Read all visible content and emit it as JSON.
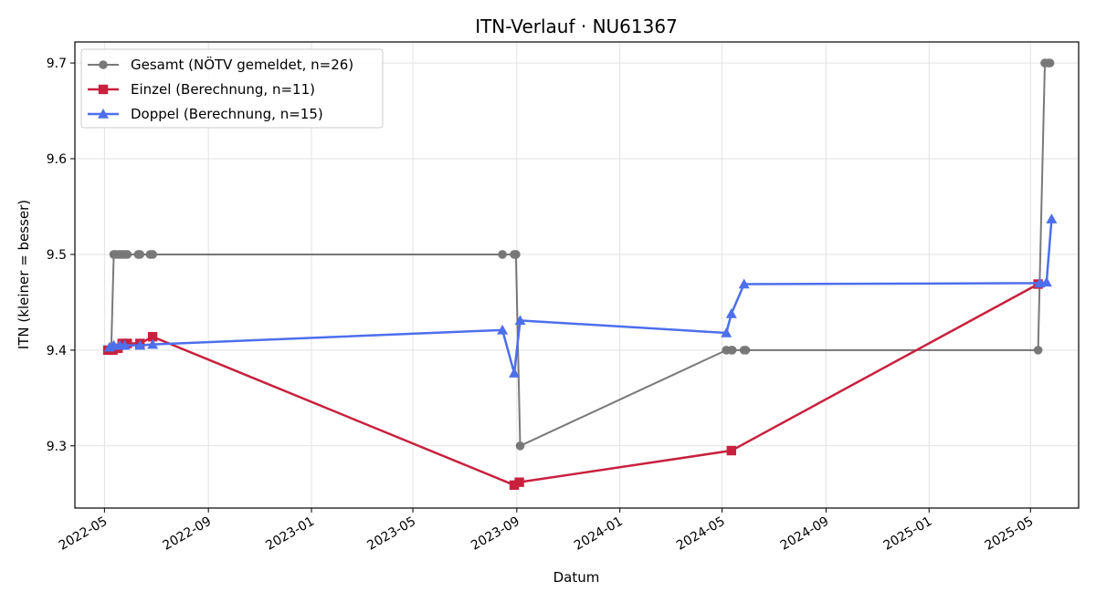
{
  "chart_data": {
    "type": "line",
    "title": "ITN-Verlauf · NU61367",
    "xlabel": "Datum",
    "ylabel": "ITN  (kleiner = besser)",
    "x_range": [
      "2022-03-27",
      "2025-06-27"
    ],
    "ylim": [
      9.235,
      9.722
    ],
    "y_ticks": [
      9.3,
      9.4,
      9.5,
      9.6,
      9.7
    ],
    "y_tick_labels": [
      "9.3",
      "9.4",
      "9.5",
      "9.6",
      "9.7"
    ],
    "x_ticks": [
      "2022-05-01",
      "2022-09-01",
      "2023-01-01",
      "2023-05-01",
      "2023-09-01",
      "2024-01-01",
      "2024-05-01",
      "2024-09-01",
      "2025-01-01",
      "2025-05-01"
    ],
    "x_tick_labels": [
      "2022-05",
      "2022-09",
      "2023-01",
      "2023-05",
      "2023-09",
      "2024-01",
      "2024-05",
      "2024-09",
      "2025-01",
      "2025-05"
    ],
    "grid": true,
    "legend_position": "top-left",
    "series": [
      {
        "name": "Gesamt (NÖTV gemeldet, n=26)",
        "color": "#4d4d4d",
        "marker": "circle",
        "points": [
          {
            "x": "2022-05-05",
            "y": 9.4
          },
          {
            "x": "2022-05-08",
            "y": 9.4
          },
          {
            "x": "2022-05-09",
            "y": 9.4
          },
          {
            "x": "2022-05-12",
            "y": 9.5
          },
          {
            "x": "2022-05-15",
            "y": 9.5
          },
          {
            "x": "2022-05-19",
            "y": 9.5
          },
          {
            "x": "2022-05-22",
            "y": 9.5
          },
          {
            "x": "2022-05-25",
            "y": 9.5
          },
          {
            "x": "2022-05-28",
            "y": 9.5
          },
          {
            "x": "2022-06-10",
            "y": 9.5
          },
          {
            "x": "2022-06-12",
            "y": 9.5
          },
          {
            "x": "2022-06-24",
            "y": 9.5
          },
          {
            "x": "2022-06-27",
            "y": 9.5
          },
          {
            "x": "2023-08-15",
            "y": 9.5
          },
          {
            "x": "2023-08-29",
            "y": 9.5
          },
          {
            "x": "2023-08-31",
            "y": 9.5
          },
          {
            "x": "2023-09-05",
            "y": 9.3
          },
          {
            "x": "2024-05-06",
            "y": 9.4
          },
          {
            "x": "2024-05-12",
            "y": 9.4
          },
          {
            "x": "2024-05-13",
            "y": 9.4
          },
          {
            "x": "2024-05-27",
            "y": 9.4
          },
          {
            "x": "2024-05-29",
            "y": 9.4
          },
          {
            "x": "2025-05-10",
            "y": 9.4
          },
          {
            "x": "2025-05-18",
            "y": 9.7
          },
          {
            "x": "2025-05-22",
            "y": 9.7
          },
          {
            "x": "2025-05-24",
            "y": 9.7
          }
        ]
      },
      {
        "name": "Einzel (Berechnung, n=11)",
        "color": "#c8213f",
        "marker": "square",
        "points": [
          {
            "x": "2022-05-05",
            "y": 9.4
          },
          {
            "x": "2022-05-11",
            "y": 9.4
          },
          {
            "x": "2022-05-17",
            "y": 9.402
          },
          {
            "x": "2022-05-22",
            "y": 9.407
          },
          {
            "x": "2022-05-28",
            "y": 9.407
          },
          {
            "x": "2022-06-12",
            "y": 9.407
          },
          {
            "x": "2022-06-27",
            "y": 9.414
          },
          {
            "x": "2023-08-29",
            "y": 9.259
          },
          {
            "x": "2023-09-04",
            "y": 9.262
          },
          {
            "x": "2024-05-12",
            "y": 9.295
          },
          {
            "x": "2025-05-10",
            "y": 9.469
          }
        ]
      },
      {
        "name": "Doppel (Berechnung, n=15)",
        "color": "#4d6fec",
        "marker": "triangle",
        "points": [
          {
            "x": "2022-05-07",
            "y": 9.403
          },
          {
            "x": "2022-05-12",
            "y": 9.405
          },
          {
            "x": "2022-05-19",
            "y": 9.405
          },
          {
            "x": "2022-05-25",
            "y": 9.405
          },
          {
            "x": "2022-06-12",
            "y": 9.405
          },
          {
            "x": "2022-06-27",
            "y": 9.406
          },
          {
            "x": "2023-08-15",
            "y": 9.421
          },
          {
            "x": "2023-08-29",
            "y": 9.376
          },
          {
            "x": "2023-09-05",
            "y": 9.431
          },
          {
            "x": "2024-05-06",
            "y": 9.418
          },
          {
            "x": "2024-05-12",
            "y": 9.438
          },
          {
            "x": "2024-05-27",
            "y": 9.469
          },
          {
            "x": "2025-05-12",
            "y": 9.47
          },
          {
            "x": "2025-05-20",
            "y": 9.471
          },
          {
            "x": "2025-05-26",
            "y": 9.537
          }
        ]
      }
    ]
  }
}
